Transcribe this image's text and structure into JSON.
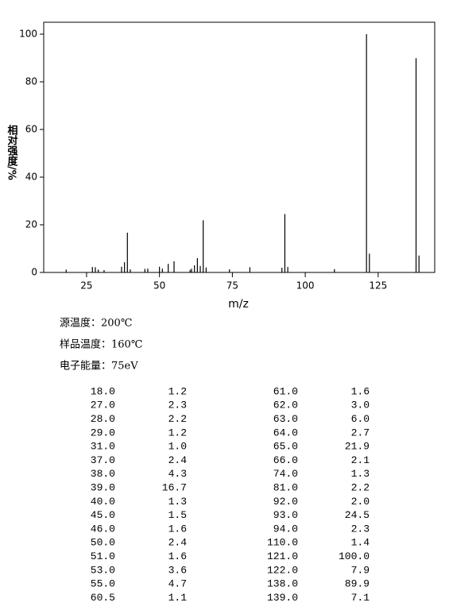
{
  "chart_data": {
    "type": "stick",
    "xlabel": "m/z",
    "ylabel": "相对强度/%",
    "x": [
      18.0,
      27.0,
      28.0,
      29.0,
      31.0,
      37.0,
      38.0,
      39.0,
      40.0,
      45.0,
      46.0,
      50.0,
      51.0,
      53.0,
      55.0,
      60.5,
      61.0,
      62.0,
      63.0,
      64.0,
      65.0,
      66.0,
      74.0,
      81.0,
      92.0,
      93.0,
      94.0,
      110.0,
      121.0,
      122.0,
      138.0,
      139.0
    ],
    "values": [
      1.2,
      2.3,
      2.2,
      1.2,
      1.0,
      2.4,
      4.3,
      16.7,
      1.3,
      1.5,
      1.6,
      2.4,
      1.6,
      3.6,
      4.7,
      1.1,
      1.6,
      3.0,
      6.0,
      2.7,
      21.9,
      2.1,
      1.3,
      2.2,
      2.0,
      24.5,
      2.3,
      1.4,
      100.0,
      7.9,
      89.9,
      7.1
    ],
    "color": "#000000",
    "xlim": [
      10.3,
      144.4
    ],
    "ylim": [
      0,
      105
    ],
    "xticks": [
      25,
      50,
      75,
      100,
      125
    ],
    "yticks": [
      0,
      20,
      40,
      60,
      80,
      100
    ]
  },
  "info": [
    "源温度：200℃",
    "样品温度：160℃",
    "电子能量：75eV"
  ],
  "table": {
    "rows": [
      [
        "18.0",
        "1.2",
        "61.0",
        "1.6"
      ],
      [
        "27.0",
        "2.3",
        "62.0",
        "3.0"
      ],
      [
        "28.0",
        "2.2",
        "63.0",
        "6.0"
      ],
      [
        "29.0",
        "1.2",
        "64.0",
        "2.7"
      ],
      [
        "31.0",
        "1.0",
        "65.0",
        "21.9"
      ],
      [
        "37.0",
        "2.4",
        "66.0",
        "2.1"
      ],
      [
        "38.0",
        "4.3",
        "74.0",
        "1.3"
      ],
      [
        "39.0",
        "16.7",
        "81.0",
        "2.2"
      ],
      [
        "40.0",
        "1.3",
        "92.0",
        "2.0"
      ],
      [
        "45.0",
        "1.5",
        "93.0",
        "24.5"
      ],
      [
        "46.0",
        "1.6",
        "94.0",
        "2.3"
      ],
      [
        "50.0",
        "2.4",
        "110.0",
        "1.4"
      ],
      [
        "51.0",
        "1.6",
        "121.0",
        "100.0"
      ],
      [
        "53.0",
        "3.6",
        "122.0",
        "7.9"
      ],
      [
        "55.0",
        "4.7",
        "138.0",
        "89.9"
      ],
      [
        "60.5",
        "1.1",
        "139.0",
        "7.1"
      ]
    ]
  }
}
